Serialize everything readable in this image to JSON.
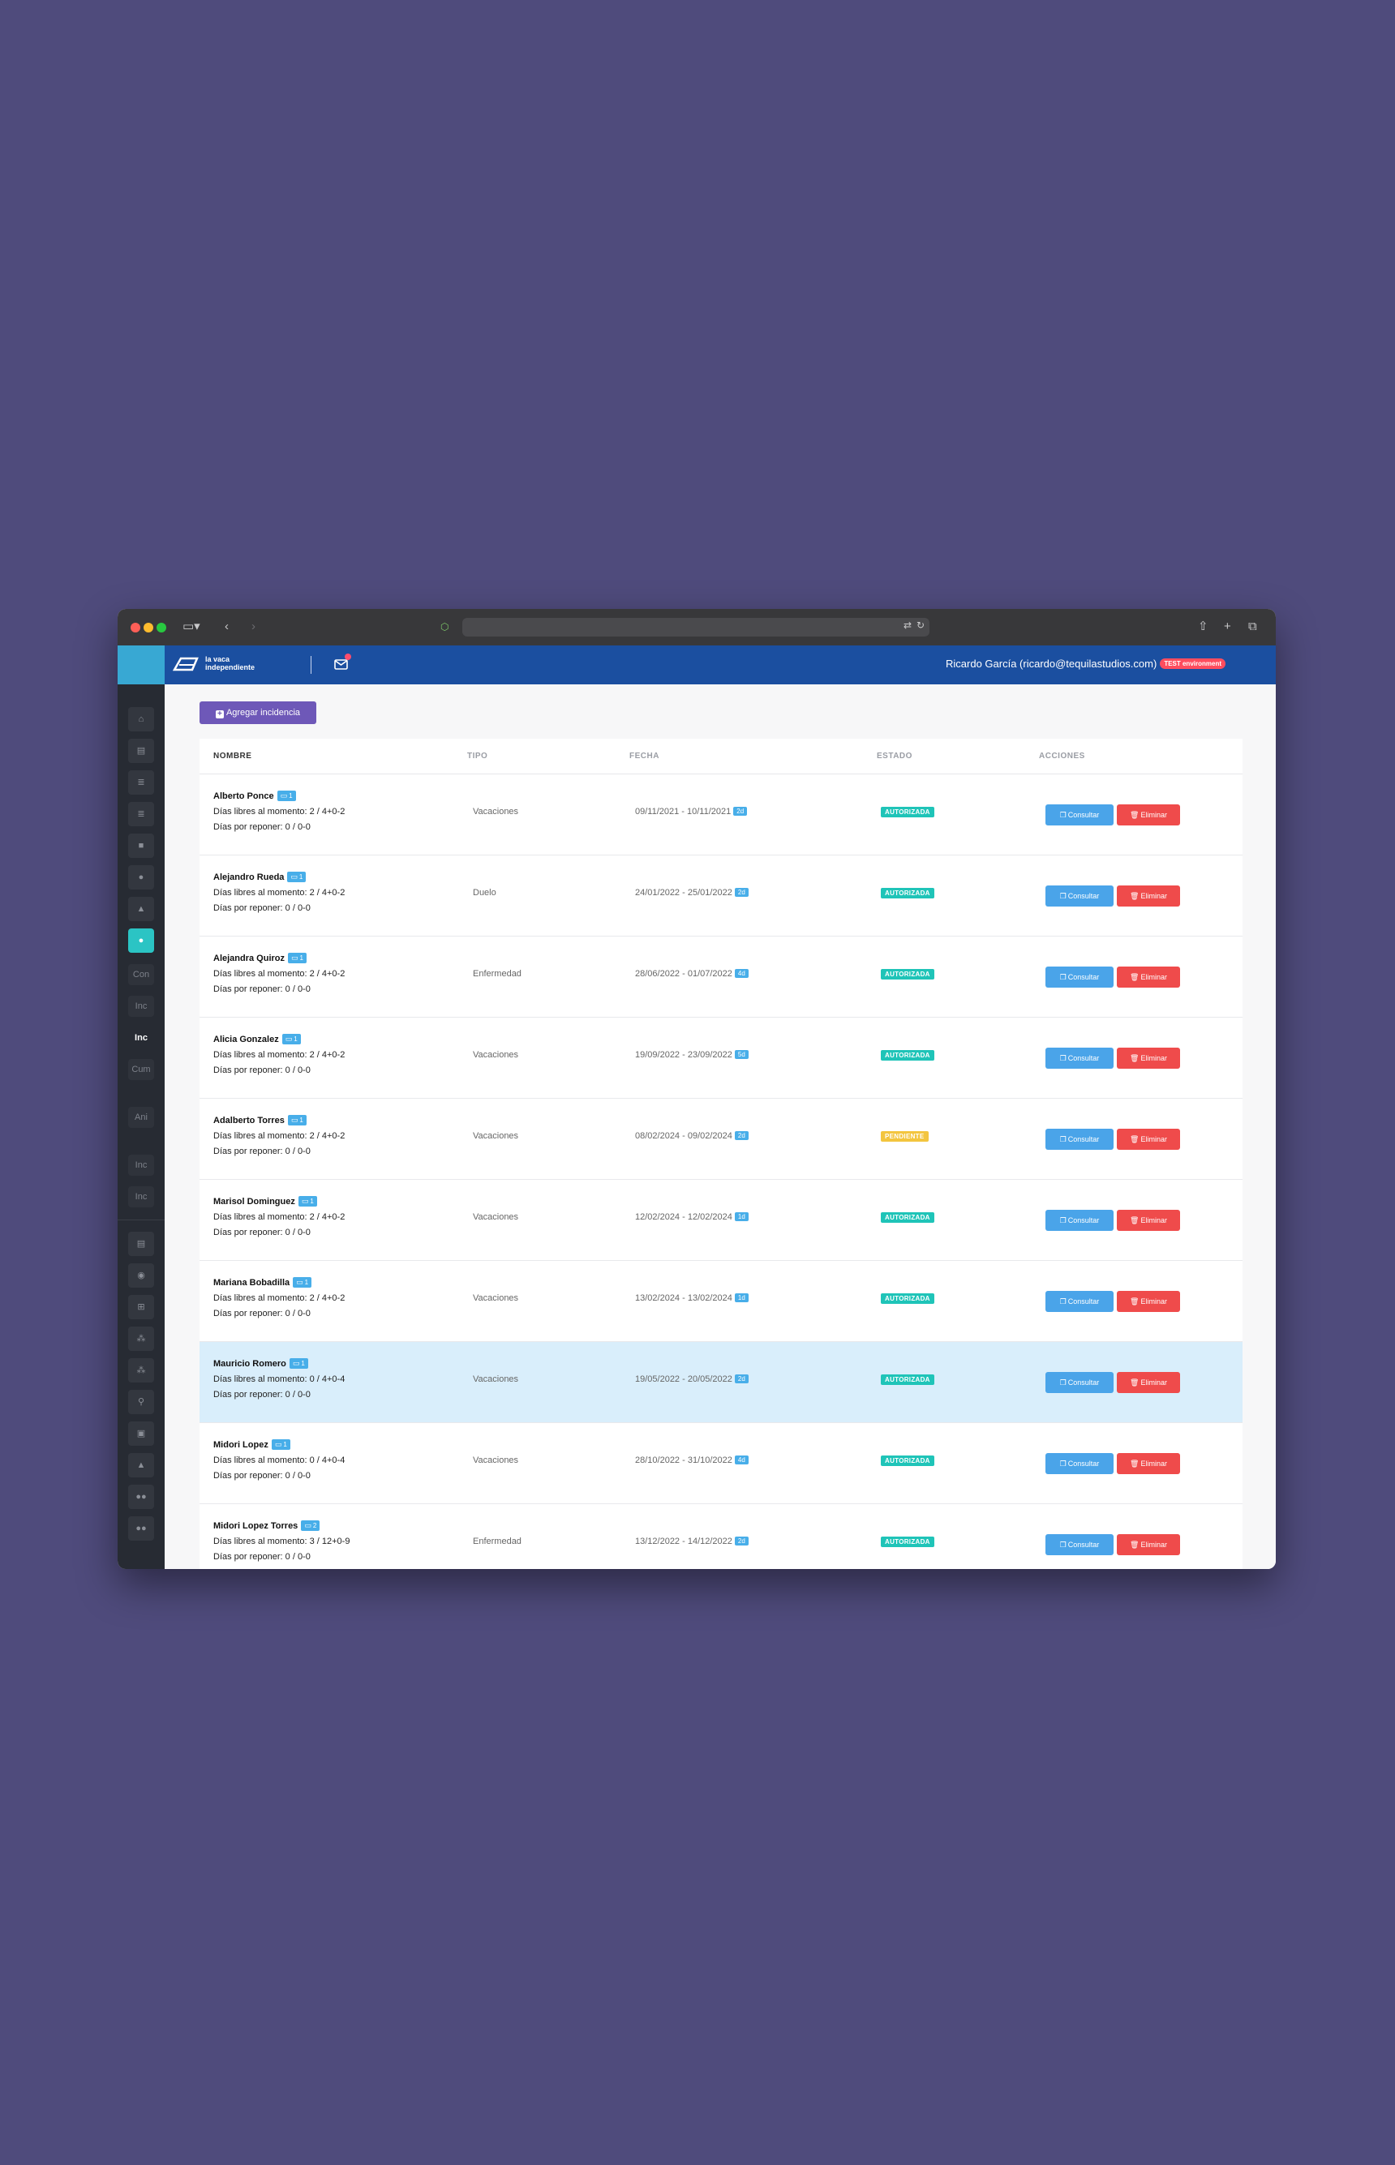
{
  "app": {
    "brand_line1": "la vaca",
    "brand_line2": "independiente",
    "user": "Ricardo García (ricardo@tequilastudios.com)",
    "env_badge": "TEST environment"
  },
  "sidebar": {
    "text_items": [
      "Con",
      "Inc",
      "Inc",
      "Cum",
      "Ani",
      "Inc",
      "Inc"
    ]
  },
  "toolbar": {
    "add_label": "Agregar incidencia"
  },
  "table": {
    "headers": [
      "NOMBRE",
      "TIPO",
      "FECHA",
      "ESTADO",
      "ACCIONES"
    ],
    "consult_label": "Consultar",
    "delete_label": "Eliminar",
    "rows": [
      {
        "name": "Alberto Ponce",
        "count": "1",
        "dias_libres": "Días libres al momento: 2 / 4+0-2",
        "dias_reponer": "Días por reponer: 0 / 0-0",
        "tipo": "Vacaciones",
        "fecha": "09/11/2021 - 10/11/2021",
        "dur": "2d",
        "estado": "AUTORIZADA"
      },
      {
        "name": "Alejandro Rueda",
        "count": "1",
        "dias_libres": "Días libres al momento: 2 / 4+0-2",
        "dias_reponer": "Días por reponer: 0 / 0-0",
        "tipo": "Duelo",
        "fecha": "24/01/2022 - 25/01/2022",
        "dur": "2d",
        "estado": "AUTORIZADA"
      },
      {
        "name": "Alejandra Quiroz",
        "count": "1",
        "dias_libres": "Días libres al momento: 2 / 4+0-2",
        "dias_reponer": "Días por reponer: 0 / 0-0",
        "tipo": "Enfermedad",
        "fecha": "28/06/2022 - 01/07/2022",
        "dur": "4d",
        "estado": "AUTORIZADA"
      },
      {
        "name": "Alicia Gonzalez",
        "count": "1",
        "dias_libres": "Días libres al momento: 2 / 4+0-2",
        "dias_reponer": "Días por reponer: 0 / 0-0",
        "tipo": "Vacaciones",
        "fecha": "19/09/2022 - 23/09/2022",
        "dur": "5d",
        "estado": "AUTORIZADA"
      },
      {
        "name": "Adalberto Torres",
        "count": "1",
        "dias_libres": "Días libres al momento: 2 / 4+0-2",
        "dias_reponer": "Días por reponer: 0 / 0-0",
        "tipo": "Vacaciones",
        "fecha": "08/02/2024 - 09/02/2024",
        "dur": "2d",
        "estado": "PENDIENTE"
      },
      {
        "name": "Marisol Dominguez",
        "count": "1",
        "dias_libres": "Días libres al momento: 2 / 4+0-2",
        "dias_reponer": "Días por reponer: 0 / 0-0",
        "tipo": "Vacaciones",
        "fecha": "12/02/2024 - 12/02/2024",
        "dur": "1d",
        "estado": "AUTORIZADA"
      },
      {
        "name": "Mariana Bobadilla",
        "count": "1",
        "dias_libres": "Días libres al momento: 2 / 4+0-2",
        "dias_reponer": "Días por reponer: 0 / 0-0",
        "tipo": "Vacaciones",
        "fecha": "13/02/2024 - 13/02/2024",
        "dur": "1d",
        "estado": "AUTORIZADA"
      },
      {
        "name": "Mauricio Romero",
        "count": "1",
        "dias_libres": "Días libres al momento: 0 / 4+0-4",
        "dias_reponer": "Días por reponer: 0 / 0-0",
        "tipo": "Vacaciones",
        "fecha": "19/05/2022 - 20/05/2022",
        "dur": "2d",
        "estado": "AUTORIZADA"
      },
      {
        "name": "Midori Lopez",
        "count": "1",
        "dias_libres": "Días libres al momento: 0 / 4+0-4",
        "dias_reponer": "Días por reponer: 0 / 0-0",
        "tipo": "Vacaciones",
        "fecha": "28/10/2022 - 31/10/2022",
        "dur": "4d",
        "estado": "AUTORIZADA"
      },
      {
        "name": "Midori Lopez Torres",
        "count": "2",
        "dias_libres": "Días libres al momento: 3 / 12+0-9",
        "dias_reponer": "Días por reponer: 0 / 0-0",
        "tipo": "Enfermedad",
        "fecha": "13/12/2022 - 14/12/2022",
        "dur": "2d",
        "estado": "AUTORIZADA"
      }
    ]
  }
}
